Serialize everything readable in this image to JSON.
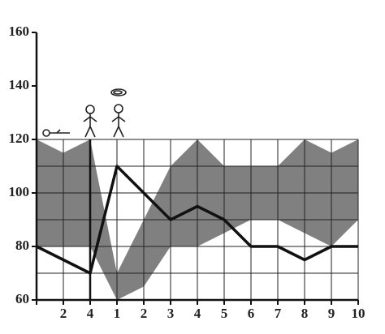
{
  "chart_data": {
    "type": "line",
    "categories": [
      null,
      "2",
      "4",
      "1",
      "2",
      "3",
      "4",
      "5",
      "6",
      "7",
      "8",
      "9",
      "10"
    ],
    "values": [
      80,
      75,
      70,
      110,
      100,
      90,
      95,
      90,
      80,
      80,
      75,
      80,
      80
    ],
    "color": "#111111",
    "band": {
      "upper": [
        120,
        115,
        120,
        70,
        90,
        110,
        120,
        110,
        110,
        110,
        120,
        115,
        120
      ],
      "lower": [
        80,
        80,
        80,
        60,
        65,
        80,
        80,
        85,
        90,
        90,
        85,
        80,
        90
      ],
      "color": "#808080"
    },
    "ylim": [
      60,
      160
    ],
    "yticks": [
      60,
      80,
      100,
      120,
      140,
      160
    ],
    "grid": true,
    "grid_yticks": [
      60,
      70,
      80,
      90,
      100,
      110,
      120
    ]
  }
}
